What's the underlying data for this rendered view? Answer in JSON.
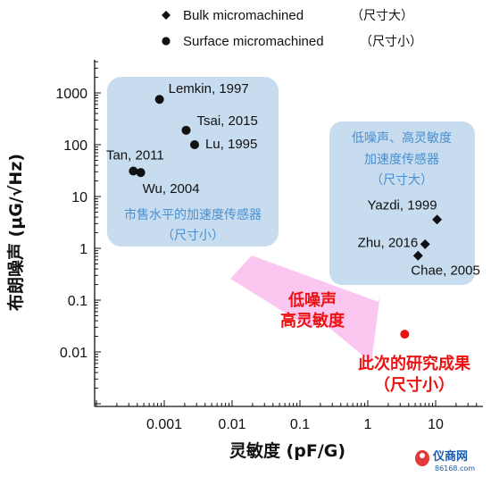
{
  "chart_data": {
    "type": "scatter",
    "xscale": "log",
    "yscale": "log",
    "xlim": [
      0.0001,
      50
    ],
    "ylim": [
      0.002,
      6000
    ],
    "xlabel": "灵敏度 (pF/G)",
    "ylabel": "布朗噪声 (μG/√Hz)",
    "x_ticks": [
      {
        "v": 0.001,
        "label": "0.001"
      },
      {
        "v": 0.01,
        "label": "0.01"
      },
      {
        "v": 0.1,
        "label": "0.1"
      },
      {
        "v": 1,
        "label": "1"
      },
      {
        "v": 10,
        "label": "10"
      }
    ],
    "y_ticks": [
      {
        "v": 1000,
        "label": "1000"
      },
      {
        "v": 100,
        "label": "100"
      },
      {
        "v": 10,
        "label": "10"
      },
      {
        "v": 1,
        "label": "1"
      },
      {
        "v": 0.1,
        "label": "0.1"
      },
      {
        "v": 0.01,
        "label": "0.01"
      }
    ],
    "legend": [
      {
        "marker": "diamond",
        "label": "Bulk micromachined",
        "note": "（尺寸大）"
      },
      {
        "marker": "circle",
        "label": "Surface micromachined",
        "note": "（尺寸小）"
      }
    ],
    "series": [
      {
        "name": "Surface micromachined",
        "marker": "circle",
        "points": [
          {
            "x": 0.00085,
            "y": 750,
            "label": "Lemkin, 1997"
          },
          {
            "x": 0.0021,
            "y": 190,
            "label": "Tsai, 2015"
          },
          {
            "x": 0.0028,
            "y": 100,
            "label": "Lu, 1995"
          },
          {
            "x": 0.00035,
            "y": 31,
            "label": "Tan, 2011"
          },
          {
            "x": 0.00045,
            "y": 29,
            "label": "Wu, 2004"
          }
        ]
      },
      {
        "name": "Bulk micromachined",
        "marker": "diamond",
        "points": [
          {
            "x": 10.5,
            "y": 3.6,
            "label": "Yazdi, 1999"
          },
          {
            "x": 7.0,
            "y": 1.2,
            "label": "Zhu, 2016"
          },
          {
            "x": 5.5,
            "y": 0.72,
            "label": "Chae, 2005"
          }
        ]
      },
      {
        "name": "此次的研究成果",
        "marker": "circle",
        "color": "#ee1111",
        "points": [
          {
            "x": 3.5,
            "y": 0.022,
            "label": ""
          }
        ]
      }
    ],
    "boxes": [
      {
        "lines": [
          "市售水平的加速度传感器",
          "（尺寸小）"
        ]
      },
      {
        "lines": [
          "低噪声、高灵敏度",
          "加速度传感器",
          "（尺寸大）"
        ]
      }
    ],
    "arrow_text": [
      "低噪声",
      "高灵敏度"
    ],
    "result_text": [
      "此次的研究成果",
      "（尺寸小）"
    ],
    "colors": {
      "box_fill": "#c7dcee",
      "box_text": "#4a8fd0",
      "arrow_fill": "#fbc6f0",
      "highlight": "#ee1111"
    }
  },
  "watermark": {
    "main": "仪商网",
    "sub": "86168.com"
  }
}
